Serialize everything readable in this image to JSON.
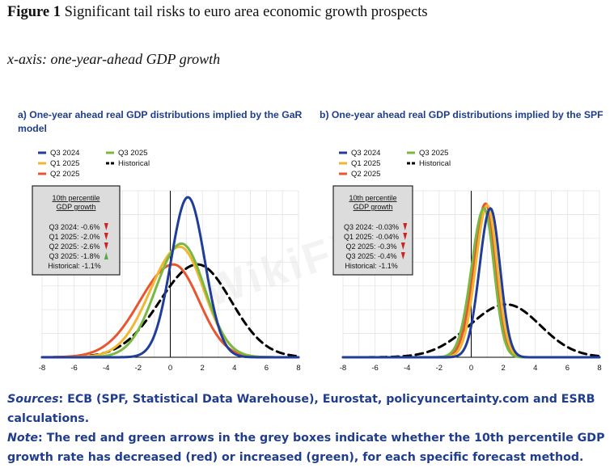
{
  "figure": {
    "label": "Figure 1",
    "title": "Significant tail risks to euro area economic growth prospects",
    "xaxis_note": "x-axis: one-year-ahead GDP growth"
  },
  "colors": {
    "Q3 2024": "#1f3d99",
    "Q1 2025": "#f2b632",
    "Q2 2025": "#e8552f",
    "Q3 2025": "#7ab842",
    "Historical": "#000000",
    "down_arrow": "#cc2222",
    "up_arrow": "#55aa44"
  },
  "chart_data": [
    {
      "type": "line",
      "title": "a) One-year ahead real GDP distributions implied by the GaR model",
      "xlim": [
        -8,
        8
      ],
      "xticks": [
        "-8",
        "-6",
        "-4",
        "-2",
        "0",
        "2",
        "4",
        "6",
        "8"
      ],
      "legend": [
        "Q3 2024",
        "Q1 2025",
        "Q2 2025",
        "Q3 2025",
        "Historical"
      ],
      "box_title": "10th percentile GDP growth",
      "box_lines": [
        {
          "text": "Q3 2024: -0.6%",
          "arrow": "down"
        },
        {
          "text": "Q1 2025: -2.0%",
          "arrow": "down"
        },
        {
          "text": "Q2 2025: -2.6%",
          "arrow": "down"
        },
        {
          "text": "Q3 2025: -1.8%",
          "arrow": "up"
        },
        {
          "text": "Historical: -1.1%",
          "arrow": ""
        }
      ],
      "ymax": 1.0,
      "series": [
        {
          "name": "Q3 2024",
          "mode": 1.1,
          "peak": 1.0,
          "sl": 1.05,
          "sr": 1.05,
          "dashed": false
        },
        {
          "name": "Q1 2025",
          "mode": 0.6,
          "peak": 0.69,
          "sl": 1.85,
          "sr": 1.5,
          "dashed": false
        },
        {
          "name": "Q2 2025",
          "mode": 0.2,
          "peak": 0.58,
          "sl": 2.1,
          "sr": 1.6,
          "dashed": false
        },
        {
          "name": "Q3 2025",
          "mode": 0.7,
          "peak": 0.71,
          "sl": 1.6,
          "sr": 1.45,
          "dashed": false
        },
        {
          "name": "Historical",
          "mode": 1.7,
          "peak": 0.58,
          "sl": 2.35,
          "sr": 2.1,
          "dashed": true
        }
      ]
    },
    {
      "type": "line",
      "title": "b) One-year ahead real GDP distributions implied by the SPF",
      "xlim": [
        -8,
        8
      ],
      "xticks": [
        "-8",
        "-6",
        "-4",
        "-2",
        "0",
        "2",
        "4",
        "6",
        "8"
      ],
      "legend": [
        "Q3 2024",
        "Q1 2025",
        "Q2 2025",
        "Q3 2025",
        "Historical"
      ],
      "box_title": "10th percentile GDP growth",
      "box_lines": [
        {
          "text": "Q3 2024: -0.03%",
          "arrow": "down"
        },
        {
          "text": "Q1 2025: -0.04%",
          "arrow": "down"
        },
        {
          "text": "Q2 2025: -0.3%",
          "arrow": "down"
        },
        {
          "text": "Q3 2025: -0.4%",
          "arrow": "down"
        },
        {
          "text": "Historical: -1.1%",
          "arrow": ""
        }
      ],
      "ymax": 1.0,
      "series": [
        {
          "name": "Q3 2024",
          "mode": 1.2,
          "peak": 0.93,
          "sl": 0.68,
          "sr": 0.6,
          "dashed": false
        },
        {
          "name": "Q1 2025",
          "mode": 1.0,
          "peak": 0.95,
          "sl": 0.72,
          "sr": 0.62,
          "dashed": false
        },
        {
          "name": "Q2 2025",
          "mode": 0.9,
          "peak": 0.96,
          "sl": 0.75,
          "sr": 0.62,
          "dashed": false
        },
        {
          "name": "Q3 2025",
          "mode": 0.8,
          "peak": 0.93,
          "sl": 0.78,
          "sr": 0.62,
          "dashed": false
        },
        {
          "name": "Historical",
          "mode": 2.2,
          "peak": 0.33,
          "sl": 2.3,
          "sr": 2.1,
          "dashed": true
        }
      ]
    }
  ],
  "footer": {
    "sources_label": "Sources",
    "sources_text": ": ECB (SPF, Statistical Data Warehouse), Eurostat, policyuncertainty.com and ESRB calculations.",
    "note_label": "Note",
    "note_text": ": The red and green arrows in the grey boxes indicate whether the 10th percentile GDP growth rate has decreased (red) or increased (green), for each specific forecast method."
  }
}
